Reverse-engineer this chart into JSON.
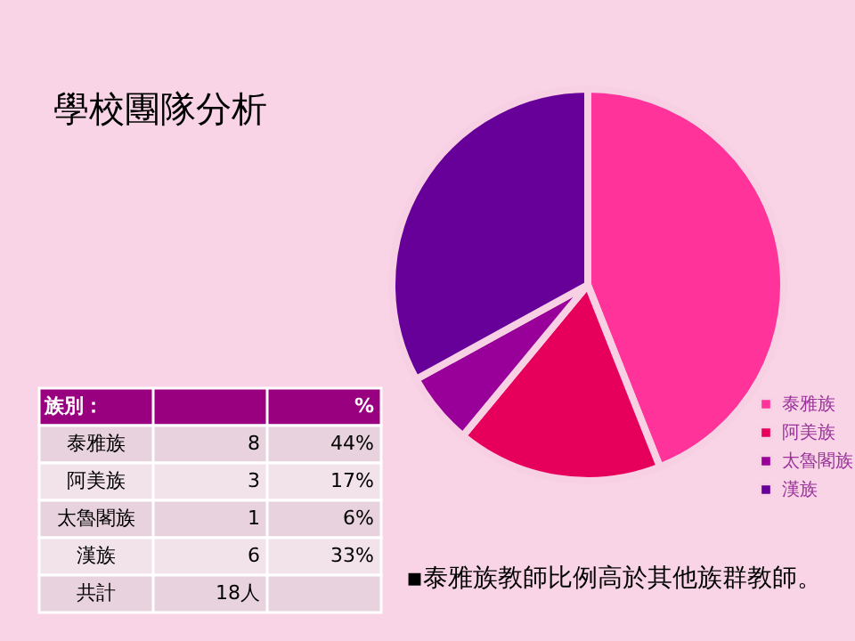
{
  "chart_data": [
    {
      "type": "pie",
      "title": "學校團隊分析",
      "categories": [
        "泰雅族",
        "阿美族",
        "太魯閣族",
        "漢族"
      ],
      "values": [
        44,
        17,
        6,
        33
      ],
      "colors": [
        "#ff3399",
        "#e6005c",
        "#990099",
        "#660099"
      ],
      "legend": "right",
      "annotations": [
        "▪泰雅族教師比例高於其他族群教師。"
      ]
    },
    {
      "type": "other",
      "categories": [
        "泰雅族",
        "阿美族",
        "太魯閣族",
        "漢族"
      ],
      "values": [
        8,
        3,
        1,
        6
      ],
      "data_labels": true,
      "annotations": [
        "族別：",
        "%",
        "44%",
        "17%",
        "6%",
        "33%",
        "共計",
        "18人"
      ]
    }
  ]
}
